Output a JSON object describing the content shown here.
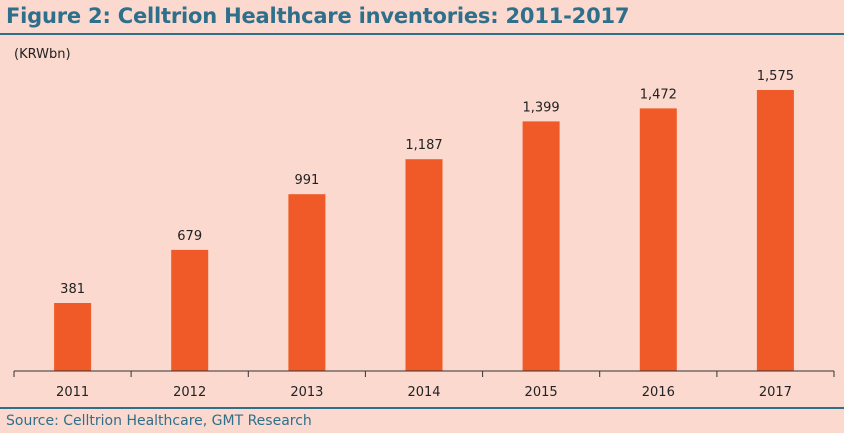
{
  "figure_title": "Figure 2: Celltrion Healthcare inventories: 2011-2017",
  "source": "Source: Celltrion Healthcare, GMT Research",
  "colors": {
    "background": "#fbd9ce",
    "bar": "#f05a28",
    "title": "#2e6f8c",
    "rule": "#2e6f8c",
    "axis": "#333333"
  },
  "chart_data": {
    "type": "bar",
    "title": "Figure 2: Celltrion Healthcare inventories: 2011-2017",
    "unit_label": "(KRWbn)",
    "xlabel": "",
    "ylabel": "",
    "categories": [
      "2011",
      "2012",
      "2013",
      "2014",
      "2015",
      "2016",
      "2017"
    ],
    "values": [
      381,
      679,
      991,
      1187,
      1399,
      1472,
      1575
    ],
    "value_labels": [
      "381",
      "679",
      "991",
      "1,187",
      "1,399",
      "1,472",
      "1,575"
    ],
    "ylim": [
      0,
      1575
    ],
    "grid": false,
    "legend": "none"
  }
}
